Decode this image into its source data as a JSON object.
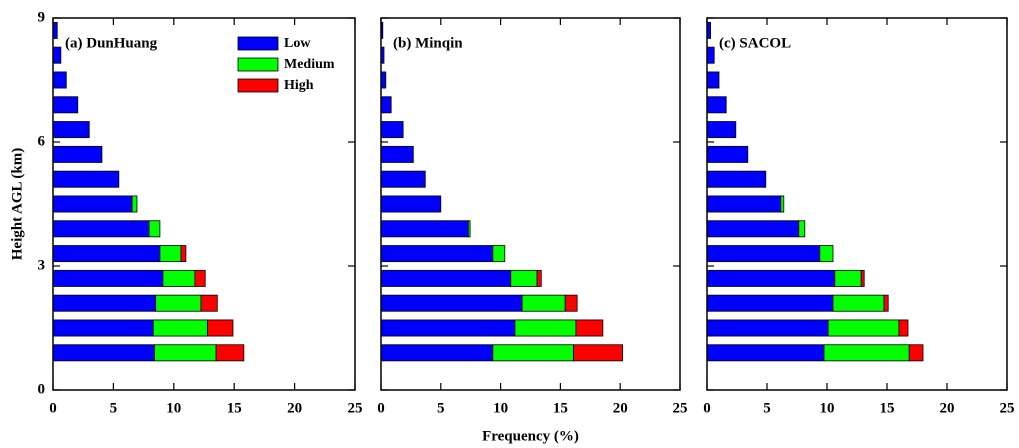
{
  "chart_data": [
    {
      "type": "bar",
      "orientation": "horizontal",
      "stacked": true,
      "title": "(a) DunHuang",
      "ylabel": "Height AGL (km)",
      "y": [
        0.9,
        1.5,
        2.1,
        2.7,
        3.3,
        3.9,
        4.5,
        5.1,
        5.7,
        6.3,
        6.9,
        7.5,
        8.1,
        8.7
      ],
      "series": [
        {
          "name": "Low",
          "color": "#0000ff",
          "values": [
            8.4,
            8.3,
            8.5,
            9.1,
            8.85,
            7.95,
            6.55,
            5.45,
            4.05,
            3.0,
            2.05,
            1.1,
            0.65,
            0.35
          ]
        },
        {
          "name": "Medium",
          "color": "#00ff00",
          "values": [
            5.1,
            4.5,
            3.75,
            2.65,
            1.75,
            0.9,
            0.4,
            0,
            0,
            0,
            0,
            0,
            0,
            0
          ]
        },
        {
          "name": "High",
          "color": "#ff0000",
          "values": [
            2.3,
            2.1,
            1.35,
            0.85,
            0.4,
            0,
            0,
            0,
            0,
            0,
            0,
            0,
            0,
            0
          ]
        }
      ],
      "xlim": [
        0,
        25
      ],
      "xticks": [
        0,
        5,
        10,
        15,
        20,
        25
      ],
      "ylim": [
        0,
        9
      ],
      "yticks": [
        0,
        3,
        6,
        9
      ],
      "show_ytick_labels": true,
      "legend": true
    },
    {
      "type": "bar",
      "orientation": "horizontal",
      "stacked": true,
      "title": "(b) Minqin",
      "xlabel": "Frequency (%)",
      "y": [
        0.9,
        1.5,
        2.1,
        2.7,
        3.3,
        3.9,
        4.5,
        5.1,
        5.7,
        6.3,
        6.9,
        7.5,
        8.1,
        8.7
      ],
      "series": [
        {
          "name": "Low",
          "color": "#0000ff",
          "values": [
            9.35,
            11.2,
            11.8,
            10.85,
            9.35,
            7.3,
            5.0,
            3.7,
            2.7,
            1.85,
            0.85,
            0.4,
            0.25,
            0.15
          ]
        },
        {
          "name": "Medium",
          "color": "#00ff00",
          "values": [
            6.75,
            5.1,
            3.6,
            2.2,
            1.0,
            0.15,
            0,
            0,
            0,
            0,
            0,
            0,
            0,
            0
          ]
        },
        {
          "name": "High",
          "color": "#ff0000",
          "values": [
            4.1,
            2.25,
            1.0,
            0.35,
            0,
            0,
            0,
            0,
            0,
            0,
            0,
            0,
            0,
            0
          ]
        }
      ],
      "xlim": [
        0,
        25
      ],
      "xticks": [
        0,
        5,
        10,
        15,
        20,
        25
      ],
      "ylim": [
        0,
        9
      ],
      "yticks": [
        0,
        3,
        6,
        9
      ],
      "show_ytick_labels": false,
      "legend": false
    },
    {
      "type": "bar",
      "orientation": "horizontal",
      "stacked": true,
      "title": "(c) SACOL",
      "y": [
        0.9,
        1.5,
        2.1,
        2.7,
        3.3,
        3.9,
        4.5,
        5.1,
        5.7,
        6.3,
        6.9,
        7.5,
        8.1,
        8.7
      ],
      "series": [
        {
          "name": "Low",
          "color": "#0000ff",
          "values": [
            9.75,
            10.1,
            10.5,
            10.65,
            9.4,
            7.65,
            6.15,
            4.9,
            3.4,
            2.4,
            1.6,
            1.0,
            0.6,
            0.3
          ]
        },
        {
          "name": "Medium",
          "color": "#00ff00",
          "values": [
            7.1,
            5.9,
            4.25,
            2.2,
            1.1,
            0.5,
            0.25,
            0,
            0,
            0,
            0,
            0,
            0,
            0
          ]
        },
        {
          "name": "High",
          "color": "#ff0000",
          "values": [
            1.15,
            0.75,
            0.35,
            0.25,
            0,
            0,
            0,
            0,
            0,
            0,
            0,
            0,
            0,
            0
          ]
        }
      ],
      "xlim": [
        0,
        25
      ],
      "xticks": [
        0,
        5,
        10,
        15,
        20,
        25
      ],
      "ylim": [
        0,
        9
      ],
      "yticks": [
        0,
        3,
        6,
        9
      ],
      "show_ytick_labels": false,
      "legend": false
    }
  ]
}
